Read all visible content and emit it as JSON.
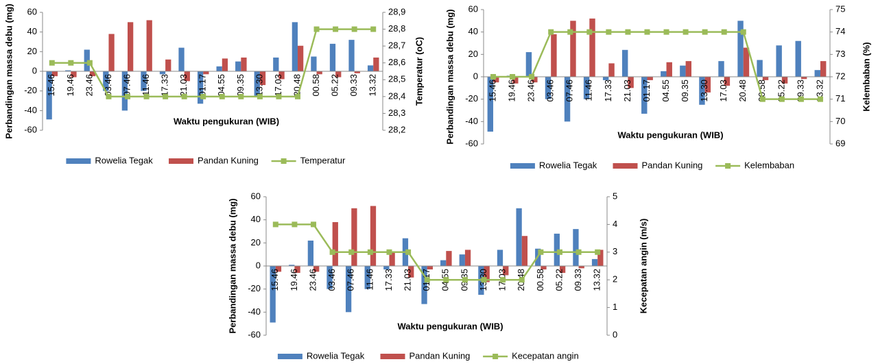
{
  "chart_data": [
    {
      "type": "bar",
      "ylabel": "Perbandingan massa debu (mg)",
      "y2label": "Temperatur (oC)",
      "xlabel": "Waktu pengukuran (WIB)",
      "categories": [
        "15.46",
        "19.46",
        "23.46",
        "03.46",
        "07.46",
        "11.46",
        "17.33",
        "21.03",
        "01.17",
        "04.55",
        "09.35",
        "13.30",
        "17.03",
        "20.48",
        "00.58",
        "05.22",
        "09.33",
        "13.32"
      ],
      "ylim": [
        -60,
        60
      ],
      "yticks": [
        -60,
        -40,
        -20,
        0,
        20,
        40,
        60
      ],
      "y2lim": [
        28.2,
        28.9
      ],
      "y2ticks": [
        {
          "value": 28.2,
          "label": "28,2"
        },
        {
          "value": 28.3,
          "label": "28,3"
        },
        {
          "value": 28.4,
          "label": "28,4"
        },
        {
          "value": 28.5,
          "label": "28,5"
        },
        {
          "value": 28.6,
          "label": "28,6"
        },
        {
          "value": 28.7,
          "label": "28,7"
        },
        {
          "value": 28.8,
          "label": "28,8"
        },
        {
          "value": 28.9,
          "label": "28,9"
        }
      ],
      "series": [
        {
          "name": "Rowelia Tegak",
          "color": "#4f81bd",
          "values": [
            -49,
            1,
            22,
            -20,
            -40,
            -20,
            -3,
            24,
            -33,
            5,
            10,
            -25,
            14,
            50,
            15,
            28,
            32,
            6
          ]
        },
        {
          "name": "Pandan Kuning",
          "color": "#c0504d",
          "values": [
            -5,
            -6,
            -5,
            38,
            50,
            52,
            12,
            -10,
            -3,
            13,
            14,
            -14,
            -8,
            26,
            -3,
            -6,
            -2,
            14
          ]
        },
        {
          "name": "Temperatur",
          "color": "#9bbb59",
          "axis": "y2",
          "type": "line",
          "values": [
            28.6,
            28.6,
            28.6,
            28.4,
            28.4,
            28.4,
            28.4,
            28.4,
            28.4,
            28.4,
            28.4,
            28.4,
            28.4,
            28.4,
            28.8,
            28.8,
            28.8,
            28.8
          ]
        }
      ]
    },
    {
      "type": "bar",
      "ylabel": "Perbandingan massa debu (mg)",
      "y2label": "Kelembaban (%)",
      "xlabel": "Waktu pengukuran (WIB)",
      "categories": [
        "15.46",
        "19.46",
        "23.46",
        "03.46",
        "07.46",
        "11.46",
        "17.33",
        "21.03",
        "01.17",
        "04.55",
        "09.35",
        "13.30",
        "17.03",
        "20.48",
        "00.58",
        "05.22",
        "09.33",
        "13.32"
      ],
      "ylim": [
        -60,
        60
      ],
      "yticks": [
        -60,
        -40,
        -20,
        0,
        20,
        40,
        60
      ],
      "y2lim": [
        69,
        75
      ],
      "y2ticks": [
        69,
        70,
        71,
        72,
        73,
        74,
        75
      ],
      "series": [
        {
          "name": "Rowelia Tegak",
          "color": "#4f81bd",
          "values": [
            -49,
            1,
            22,
            -20,
            -40,
            -20,
            -3,
            24,
            -33,
            5,
            10,
            -25,
            14,
            50,
            15,
            28,
            32,
            6
          ]
        },
        {
          "name": "Pandan Kuning",
          "color": "#c0504d",
          "values": [
            -5,
            -6,
            -5,
            38,
            50,
            52,
            12,
            -10,
            -3,
            13,
            14,
            -14,
            -8,
            26,
            -3,
            -6,
            -2,
            14
          ]
        },
        {
          "name": "Kelembaban",
          "color": "#9bbb59",
          "axis": "y2",
          "type": "line",
          "values": [
            72,
            72,
            72,
            74,
            74,
            74,
            74,
            74,
            74,
            74,
            74,
            74,
            74,
            74,
            71,
            71,
            71,
            71
          ]
        }
      ]
    },
    {
      "type": "bar",
      "ylabel": "Perbandingan massa debu (mg)",
      "y2label": "Kecepatan angin (m/s)",
      "xlabel": "Waktu pengukuran (WIB)",
      "categories": [
        "15.46",
        "19.46",
        "23.46",
        "03.46",
        "07.46",
        "11.46",
        "17.33",
        "21.03",
        "01.17",
        "04.55",
        "09.35",
        "13.30",
        "17.03",
        "20.48",
        "00.58",
        "05.22",
        "09.33",
        "13.32"
      ],
      "ylim": [
        -60,
        60
      ],
      "yticks": [
        -60,
        -40,
        -20,
        0,
        20,
        40,
        60
      ],
      "y2lim": [
        0,
        5
      ],
      "y2ticks": [
        0,
        1,
        2,
        3,
        4,
        5
      ],
      "series": [
        {
          "name": "Rowelia Tegak",
          "color": "#4f81bd",
          "values": [
            -49,
            1,
            22,
            -20,
            -40,
            -20,
            -3,
            24,
            -33,
            5,
            10,
            -25,
            14,
            50,
            15,
            28,
            32,
            6
          ]
        },
        {
          "name": "Pandan Kuning",
          "color": "#c0504d",
          "values": [
            -5,
            -6,
            -5,
            38,
            50,
            52,
            12,
            -10,
            -3,
            13,
            14,
            -14,
            -8,
            26,
            -3,
            -6,
            -2,
            14
          ]
        },
        {
          "name": "Kecepatan angin",
          "color": "#9bbb59",
          "axis": "y2",
          "type": "line",
          "values": [
            4,
            4,
            4,
            3,
            3,
            3,
            3,
            3,
            2,
            2,
            2,
            2,
            2,
            2,
            3,
            3,
            3,
            3
          ]
        }
      ]
    }
  ]
}
